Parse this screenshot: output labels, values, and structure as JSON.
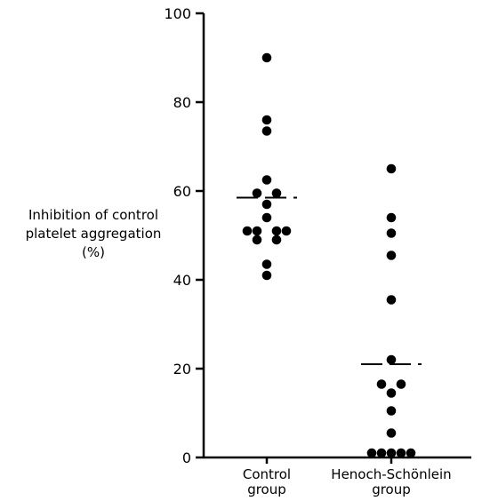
{
  "chart_data": {
    "type": "scatter",
    "ylabel_lines": [
      "Inhibition of control",
      "platelet aggregation",
      "(%)"
    ],
    "ylim": [
      0,
      100
    ],
    "yticks": [
      "0",
      "20",
      "40",
      "60",
      "80",
      "100"
    ],
    "categories": [
      {
        "lines": [
          "Control",
          "group"
        ]
      },
      {
        "lines": [
          "Henoch-Schönlein",
          "group"
        ]
      }
    ],
    "series": [
      {
        "category_index": 0,
        "mean": 58.5,
        "points": [
          {
            "value": 90,
            "offset": 0
          },
          {
            "value": 76,
            "offset": 0
          },
          {
            "value": 73.5,
            "offset": 0
          },
          {
            "value": 62.5,
            "offset": 0
          },
          {
            "value": 59.5,
            "offset": -1
          },
          {
            "value": 59.5,
            "offset": 1
          },
          {
            "value": 57,
            "offset": 0
          },
          {
            "value": 54,
            "offset": 0
          },
          {
            "value": 51,
            "offset": -2
          },
          {
            "value": 51,
            "offset": -1
          },
          {
            "value": 51,
            "offset": 1
          },
          {
            "value": 51,
            "offset": 2
          },
          {
            "value": 49,
            "offset": -1
          },
          {
            "value": 49,
            "offset": 1
          },
          {
            "value": 43.5,
            "offset": 0
          },
          {
            "value": 41,
            "offset": 0
          }
        ]
      },
      {
        "category_index": 1,
        "mean": 21,
        "points": [
          {
            "value": 65,
            "offset": 0
          },
          {
            "value": 54,
            "offset": 0
          },
          {
            "value": 50.5,
            "offset": 0
          },
          {
            "value": 45.5,
            "offset": 0
          },
          {
            "value": 35.5,
            "offset": 0
          },
          {
            "value": 22,
            "offset": 0
          },
          {
            "value": 16.5,
            "offset": -1
          },
          {
            "value": 16.5,
            "offset": 1
          },
          {
            "value": 14.5,
            "offset": 0
          },
          {
            "value": 10.5,
            "offset": 0
          },
          {
            "value": 5.5,
            "offset": 0
          },
          {
            "value": 1,
            "offset": -2
          },
          {
            "value": 1,
            "offset": -1
          },
          {
            "value": 1,
            "offset": 0
          },
          {
            "value": 1,
            "offset": 1
          },
          {
            "value": 1,
            "offset": 2
          }
        ]
      }
    ]
  }
}
